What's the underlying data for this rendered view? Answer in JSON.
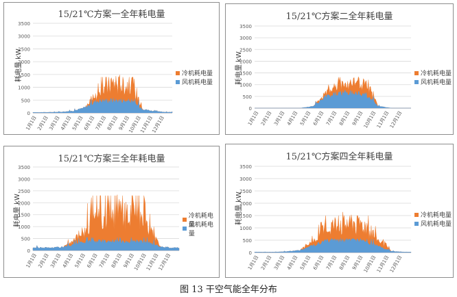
{
  "caption": "图 13 干空气能全年分布",
  "colors": {
    "chiller": "#ED7D31",
    "fan": "#5B9BD5",
    "grid": "#D9D9D9",
    "axis": "#BFBFBF"
  },
  "chart_data": [
    {
      "type": "area",
      "title": "15/21℃方案一全年耗电量",
      "ylabel": "耗电量 kW",
      "ylim": [
        0,
        3500
      ],
      "yticks": [
        0,
        500,
        1000,
        1500,
        2000,
        2500,
        3000,
        3500
      ],
      "xticks": [
        "1月1日",
        "2月1日",
        "3月1日",
        "4月1日",
        "5月1日",
        "6月1日",
        "7月1日",
        "8月1日",
        "9月1日",
        "10月1日",
        "11月1日",
        "12月1日"
      ],
      "legend": [
        "冷机耗电量",
        "风机耗电量"
      ],
      "legend_position": "right",
      "stacked": true,
      "grid": true,
      "series": [
        {
          "name": "冷机耗电量",
          "values_by_month": [
            0,
            0,
            0,
            0,
            0,
            300,
            750,
            800,
            650,
            0,
            0,
            0
          ],
          "peak": 1400
        },
        {
          "name": "风机耗电量",
          "values_by_month": [
            20,
            25,
            40,
            80,
            220,
            480,
            500,
            500,
            470,
            150,
            60,
            30
          ],
          "peak": 500
        }
      ]
    },
    {
      "type": "area",
      "title": "15/21℃方案二全年耗电量",
      "ylabel": "耗电量 kW",
      "ylim": [
        0,
        3500
      ],
      "yticks": [
        0,
        500,
        1000,
        1500,
        2000,
        2500,
        3000,
        3500
      ],
      "xticks": [
        "1月1日",
        "2月1日",
        "3月1日",
        "4月1日",
        "5月1日",
        "6月1日",
        "7月1日",
        "8月1日",
        "9月1日",
        "10月1日",
        "11月1日",
        "12月1日"
      ],
      "legend": [
        "冷机耗电量",
        "风机耗电量"
      ],
      "legend_position": "right",
      "stacked": true,
      "grid": true,
      "series": [
        {
          "name": "冷机耗电量",
          "values_by_month": [
            0,
            0,
            0,
            0,
            0,
            150,
            550,
            600,
            500,
            0,
            0,
            0
          ],
          "peak": 1300
        },
        {
          "name": "风机耗电量",
          "values_by_month": [
            0,
            0,
            0,
            0,
            80,
            500,
            650,
            650,
            620,
            80,
            0,
            0
          ],
          "peak": 700
        }
      ]
    },
    {
      "type": "area",
      "title": "15/21℃方案三全年耗电量",
      "ylabel": "耗电量 kW",
      "ylim": [
        0,
        3500
      ],
      "yticks": [
        0,
        500,
        1000,
        1500,
        2000,
        2500,
        3000,
        3500
      ],
      "xticks": [
        "1月1日",
        "2月1日",
        "3月1日",
        "4月1日",
        "5月1日",
        "6月1日",
        "7月1日",
        "8月1日",
        "9月1日",
        "10月1日",
        "11月1日",
        "12月1日"
      ],
      "legend": [
        "冷机耗电量",
        "风机耗电量"
      ],
      "legend_position": "right",
      "stacked": true,
      "grid": true,
      "series": [
        {
          "name": "冷机耗电量",
          "values_by_month": [
            0,
            0,
            0,
            300,
            700,
            1200,
            1450,
            1500,
            1250,
            700,
            0,
            0
          ],
          "peak": 2300
        },
        {
          "name": "风机耗电量",
          "values_by_month": [
            120,
            120,
            150,
            250,
            400,
            400,
            400,
            400,
            400,
            350,
            150,
            120
          ],
          "peak": 500
        }
      ]
    },
    {
      "type": "area",
      "title": "15/21℃方案四全年耗电量",
      "ylabel": "耗电量 kW",
      "ylim": [
        0,
        3500
      ],
      "yticks": [
        0,
        500,
        1000,
        1500,
        2000,
        2500,
        3000,
        3500
      ],
      "xticks": [
        "1月1日",
        "2月1日",
        "3月1日",
        "4月1日",
        "5月1日",
        "6月1日",
        "7月1日",
        "8月1日",
        "9月1日",
        "10月1日",
        "11月1日",
        "12月1日"
      ],
      "legend": [
        "冷机耗电量",
        "风机耗电量"
      ],
      "legend_position": "right",
      "stacked": true,
      "grid": true,
      "series": [
        {
          "name": "冷机耗电量",
          "values_by_month": [
            0,
            0,
            0,
            0,
            200,
            600,
            850,
            900,
            800,
            300,
            0,
            0
          ],
          "peak": 1500
        },
        {
          "name": "风机耗电量",
          "values_by_month": [
            20,
            20,
            40,
            100,
            300,
            480,
            500,
            500,
            480,
            250,
            50,
            20
          ],
          "peak": 500
        }
      ]
    }
  ]
}
